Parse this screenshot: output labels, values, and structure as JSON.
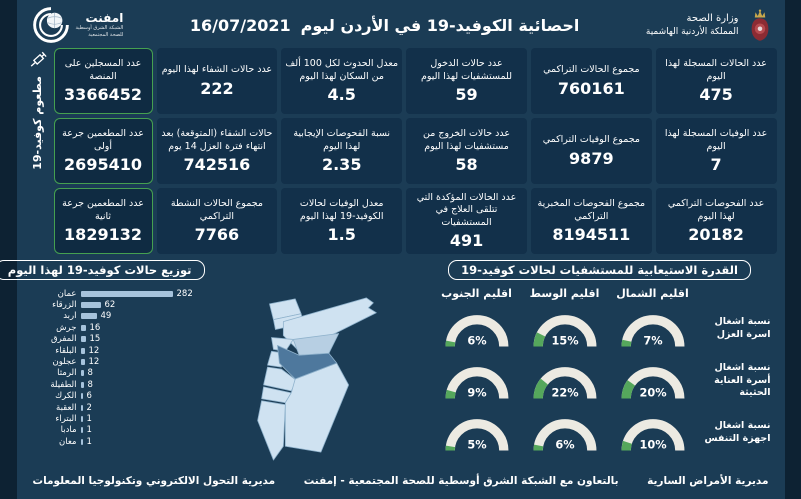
{
  "header": {
    "title": "احصائية الكوفيد-19 في الأردن ليوم",
    "date": "16/07/2021",
    "ministry": {
      "line1": "وزارة الصحة",
      "line2": "المملكة الأردنية الهاشمية"
    },
    "emphnet": {
      "name": "امفنت",
      "sub1": "الشبكة الشرق أوسطية",
      "sub2": "للصحة المجتمعية"
    }
  },
  "stats": {
    "columns": [
      {
        "cards": [
          {
            "label": "عدد الحالات المسجلة لهذا اليوم",
            "value": "475"
          },
          {
            "label": "عدد الوفيات المسجلة لهذا اليوم",
            "value": "7"
          },
          {
            "label": "عدد الفحوصات التراكمي لهذا اليوم",
            "value": "20182"
          }
        ]
      },
      {
        "cards": [
          {
            "label": "مجموع الحالات التراكمي",
            "value": "760161"
          },
          {
            "label": "مجموع الوفيات التراكمي",
            "value": "9879"
          },
          {
            "label": "مجموع الفحوصات المخبرية التراكمي",
            "value": "8194511"
          }
        ]
      },
      {
        "cards": [
          {
            "label": "عدد حالات الدخول للمستشفيات لهذا اليوم",
            "value": "59"
          },
          {
            "label": "عدد حالات الخروج من مستشفيات لهذا اليوم",
            "value": "58"
          },
          {
            "label": "عدد الحالات المؤكدة التي تتلقى العلاج في المستشفيات",
            "value": "491"
          }
        ]
      },
      {
        "cards": [
          {
            "label": "معدل الحدوث لكل 100 ألف من السكان لهذا اليوم",
            "value": "4.5"
          },
          {
            "label": "نسبة الفحوصات الإيجابية لهذا اليوم",
            "value": "2.35"
          },
          {
            "label": "معدل الوفيات لحالات الكوفيد-19 لهذا اليوم",
            "value": "1.5"
          }
        ]
      },
      {
        "cards": [
          {
            "label": "عدد حالات الشفاء لهذا اليوم",
            "value": "222"
          },
          {
            "label": "حالات الشفاء (المتوقعة) بعد انتهاء فترة العزل 14 يوم",
            "value": "742516"
          },
          {
            "label": "مجموع الحالات النشطة التراكمي",
            "value": "7766"
          }
        ]
      }
    ]
  },
  "vaccination": {
    "strip_label": "مطعوم كوفيد-19",
    "cards": [
      {
        "label": "عدد المسجلين على المنصة",
        "value": "3366452"
      },
      {
        "label": "عدد المطعمين جرعة أولى",
        "value": "2695410"
      },
      {
        "label": "عدد المطعمين جرعة ثانية",
        "value": "1829132"
      }
    ]
  },
  "chart_data": [
    {
      "type": "bar",
      "orientation": "horizontal",
      "title": "توزيع حالات كوفيد-19 لهذا اليوم",
      "categories": [
        "عمان",
        "الزرقاء",
        "اربد",
        "جرش",
        "المفرق",
        "البلقاء",
        "عجلون",
        "الرمثا",
        "الطفيلة",
        "الكرك",
        "العقبة",
        "البتراء",
        "مادبا",
        "معان"
      ],
      "values": [
        282,
        62,
        49,
        16,
        15,
        12,
        12,
        8,
        8,
        6,
        2,
        1,
        1,
        1
      ],
      "xlim": [
        0,
        282
      ],
      "bar_color": "#A6C3DC"
    },
    {
      "type": "gauge",
      "title": "القدرة الاستيعابية للمستشفيات لحالات كوفيد-19",
      "unit": "%",
      "columns": [
        "اقليم الشمال",
        "اقليم الوسط",
        "اقليم الجنوب"
      ],
      "rows": [
        {
          "label": "نسبة اشغال اسرة العزل",
          "values": [
            7,
            15,
            6
          ]
        },
        {
          "label": "نسبة اشغال أسرة العناية الحثيثة",
          "values": [
            20,
            22,
            9
          ]
        },
        {
          "label": "نسبة اشغال اجهزة التنفس",
          "values": [
            10,
            6,
            5
          ]
        }
      ],
      "track_color": "#ECEAE2",
      "fill_color": "#55A75C"
    }
  ],
  "footer": {
    "right": "مديرية الأمراض السارية",
    "center": "بالتعاون مع الشبكة الشرق أوسطية للصحة المجتمعية - إمفنت",
    "left": "مديرية التحول الالكتروني وتكنولوجيا المعلومات"
  },
  "icons": {
    "syringe": "syringe-icon",
    "emphnet_logo": "emphnet-globe-logo",
    "ministry_crest": "jordan-royal-crest"
  },
  "colors": {
    "background": "#1B3C55",
    "card": "#12304A",
    "accent_green": "#45A050",
    "bar_fill": "#A6C3DC",
    "gauge_track": "#ECEAE2",
    "gauge_fill": "#55A75C",
    "map_light": "#CFE2F1",
    "map_medium": "#B7CFE3",
    "map_dark": "#4E789D"
  }
}
